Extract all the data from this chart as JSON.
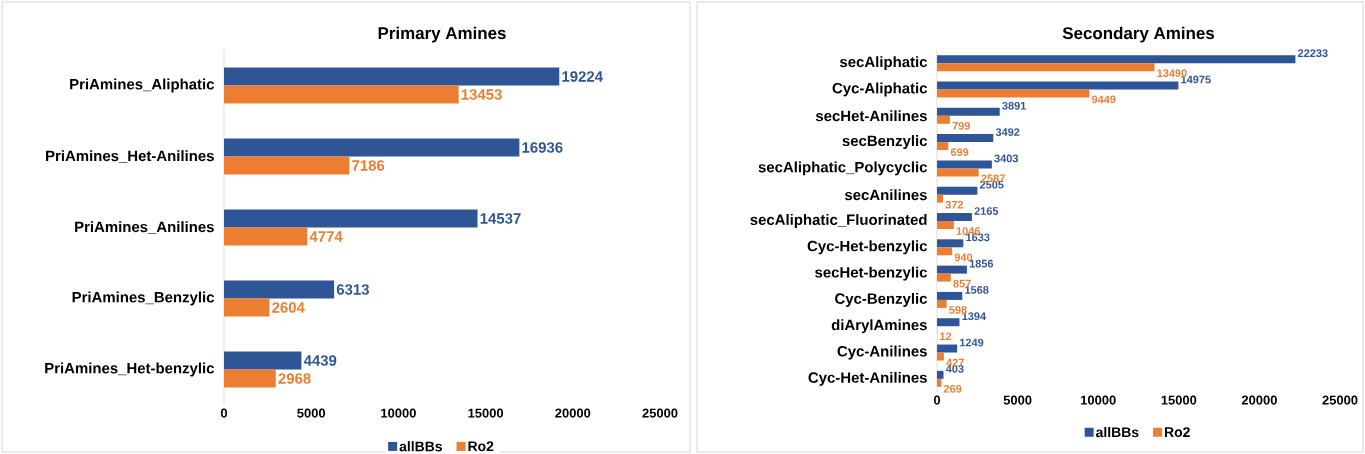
{
  "chart_data": [
    {
      "type": "bar",
      "orientation": "horizontal",
      "title": "Primary Amines",
      "categories": [
        "PriAmines_Aliphatic",
        "PriAmines_Het-Anilines",
        "PriAmines_Anilines",
        "PriAmines_Benzylic",
        "PriAmines_Het-benzylic"
      ],
      "series": [
        {
          "name": "allBBs",
          "color": "#2f5597",
          "values": [
            19224,
            16936,
            14537,
            6313,
            4439
          ]
        },
        {
          "name": "Ro2",
          "color": "#ed7d31",
          "values": [
            13453,
            7186,
            4774,
            2604,
            2968
          ]
        }
      ],
      "xlim": [
        0,
        25000
      ],
      "xticks": [
        0,
        5000,
        10000,
        15000,
        20000,
        25000
      ],
      "data_labels": true,
      "legend": "bottom",
      "grid": false
    },
    {
      "type": "bar",
      "orientation": "horizontal",
      "title": "Secondary Amines",
      "categories": [
        "secAliphatic",
        "Cyc-Aliphatic",
        "secHet-Anilines",
        "secBenzylic",
        "secAliphatic_Polycyclic",
        "secAnilines",
        "secAliphatic_Fluorinated",
        "Cyc-Het-benzylic",
        "secHet-benzylic",
        "Cyc-Benzylic",
        "diArylAmines",
        "Cyc-Anilines",
        "Cyc-Het-Anilines"
      ],
      "series": [
        {
          "name": "allBBs",
          "color": "#2f5597",
          "values": [
            22233,
            14975,
            3891,
            3492,
            3403,
            2505,
            2165,
            1633,
            1856,
            1568,
            1394,
            1249,
            403
          ]
        },
        {
          "name": "Ro2",
          "color": "#ed7d31",
          "values": [
            13490,
            9449,
            799,
            699,
            2587,
            372,
            1046,
            940,
            857,
            598,
            12,
            427,
            269
          ]
        }
      ],
      "xlim": [
        0,
        25000
      ],
      "xticks": [
        0,
        5000,
        10000,
        15000,
        20000,
        25000
      ],
      "data_labels": true,
      "legend": "bottom",
      "grid": false
    }
  ]
}
